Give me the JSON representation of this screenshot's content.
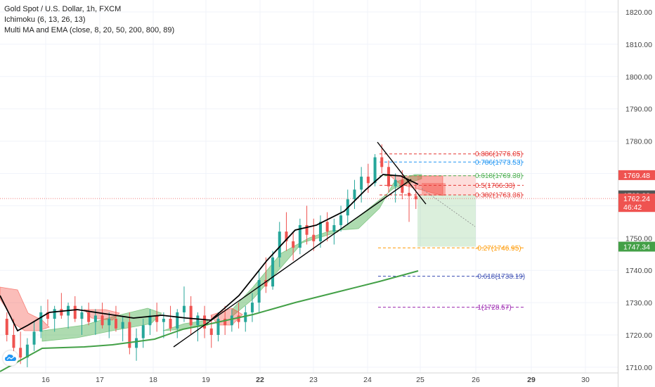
{
  "legend": {
    "symbol_line": "Gold Spot / U.S. Dollar, 1h, FXCM",
    "ichimoku_line": "Ichimoku (6, 13, 26, 13)",
    "ma_line": "Multi MA and EMA (close, 8, 20, 50, 200, 800, 89)"
  },
  "colors": {
    "bull": "#26a69a",
    "bear": "#ef5350",
    "cloud_bull": "#4caf50",
    "cloud_bear": "#f44336",
    "ma_black": "#000000",
    "ma_green": "#43a047",
    "fib_red": "#e53935",
    "fib_blue": "#2196f3",
    "fib_green": "#4caf50",
    "fib_orange": "#ff9800",
    "fib_purple": "#3f51b5",
    "fib_violet": "#9c27b0"
  },
  "chart_data": {
    "type": "candlestick",
    "title": "Gold Spot / U.S. Dollar, 1h, FXCM",
    "yaxis": {
      "ticks": [
        "1820.00",
        "1810.00",
        "1800.00",
        "1790.00",
        "1780.00",
        "1770.00",
        "1760.00",
        "1750.00",
        "1740.00",
        "1730.00",
        "1720.00",
        "1710.00"
      ],
      "ylim": [
        1709.5,
        1823.5
      ]
    },
    "xaxis": {
      "tick_labels": [
        "16",
        "17",
        "18",
        "19",
        "22",
        "23",
        "24",
        "25",
        "26",
        "29",
        "30"
      ]
    },
    "price_labels": [
      {
        "text": "1769.48",
        "value": 1769.48,
        "color": "#ef5350"
      },
      {
        "text": "1763.22",
        "value": 1763.22,
        "color": "#555555"
      },
      {
        "text": "1762.24",
        "value": 1762.24,
        "color": "#ef5350"
      },
      {
        "text": "46:42",
        "value": 1759.6,
        "color": "#ef5350"
      },
      {
        "text": "1747.34",
        "value": 1747.34,
        "color": "#43a047"
      }
    ],
    "current_price": 1762.24,
    "fib_levels": [
      {
        "label": "0.886(1776.05)",
        "value": 1776.05,
        "color": "#e53935"
      },
      {
        "label": "0.786(1773.53)",
        "value": 1773.53,
        "color": "#2196f3"
      },
      {
        "label": "0.618(1769.30)",
        "value": 1769.3,
        "color": "#4caf50"
      },
      {
        "label": "0.5(1766.33)",
        "value": 1766.33,
        "color": "#e53935"
      },
      {
        "label": "0.382(1763.36)",
        "value": 1763.36,
        "color": "#e53935"
      },
      {
        "label": "-0.27(1746.95)",
        "value": 1746.95,
        "color": "#ff9800"
      },
      {
        "label": "-0.618(1738.19)",
        "value": 1738.19,
        "color": "#3f51b5"
      },
      {
        "label": "-1(1728.57)",
        "value": 1728.57,
        "color": "#9c27b0"
      }
    ],
    "position": {
      "entry": 1763.36,
      "stop": 1769.48,
      "target": 1747.34
    },
    "candles": [
      [
        1725,
        1727,
        1718,
        1720
      ],
      [
        1720,
        1725,
        1714,
        1716
      ],
      [
        1716,
        1721,
        1711,
        1713
      ],
      [
        1713,
        1719,
        1710,
        1717
      ],
      [
        1717,
        1724,
        1715,
        1721
      ],
      [
        1721,
        1729,
        1719,
        1727
      ],
      [
        1727,
        1731,
        1723,
        1725
      ],
      [
        1725,
        1729,
        1721,
        1728
      ],
      [
        1728,
        1733,
        1725,
        1726
      ],
      [
        1726,
        1730,
        1722,
        1729
      ],
      [
        1729,
        1732,
        1724,
        1725
      ],
      [
        1725,
        1729,
        1720,
        1727
      ],
      [
        1727,
        1730,
        1723,
        1724
      ],
      [
        1724,
        1728,
        1720,
        1726
      ],
      [
        1726,
        1730,
        1722,
        1723
      ],
      [
        1723,
        1727,
        1719,
        1725
      ],
      [
        1725,
        1729,
        1721,
        1722
      ],
      [
        1722,
        1726,
        1718,
        1724
      ],
      [
        1724,
        1727,
        1714,
        1716
      ],
      [
        1716,
        1722,
        1712,
        1719
      ],
      [
        1719,
        1725,
        1716,
        1723
      ],
      [
        1723,
        1728,
        1720,
        1726
      ],
      [
        1726,
        1730,
        1721,
        1724
      ],
      [
        1724,
        1727,
        1719,
        1725
      ],
      [
        1725,
        1729,
        1721,
        1722
      ],
      [
        1722,
        1728,
        1719,
        1727
      ],
      [
        1727,
        1735,
        1724,
        1729
      ],
      [
        1729,
        1732,
        1720,
        1723
      ],
      [
        1723,
        1727,
        1718,
        1726
      ],
      [
        1726,
        1729,
        1719,
        1722
      ],
      [
        1722,
        1726,
        1716,
        1720
      ],
      [
        1720,
        1727,
        1718,
        1725
      ],
      [
        1725,
        1729,
        1720,
        1723
      ],
      [
        1723,
        1728,
        1721,
        1726
      ],
      [
        1726,
        1730,
        1722,
        1724
      ],
      [
        1724,
        1729,
        1721,
        1727
      ],
      [
        1727,
        1733,
        1724,
        1730
      ],
      [
        1730,
        1740,
        1727,
        1737
      ],
      [
        1737,
        1744,
        1733,
        1735
      ],
      [
        1735,
        1746,
        1734,
        1744
      ],
      [
        1744,
        1755,
        1741,
        1752
      ],
      [
        1752,
        1758,
        1746,
        1749
      ],
      [
        1749,
        1752,
        1743,
        1747
      ],
      [
        1747,
        1756,
        1745,
        1754
      ],
      [
        1754,
        1760,
        1748,
        1751
      ],
      [
        1751,
        1756,
        1746,
        1749
      ],
      [
        1749,
        1757,
        1747,
        1755
      ],
      [
        1755,
        1758,
        1749,
        1752
      ],
      [
        1752,
        1756,
        1748,
        1754
      ],
      [
        1754,
        1760,
        1752,
        1757
      ],
      [
        1757,
        1765,
        1754,
        1762
      ],
      [
        1762,
        1768,
        1759,
        1765
      ],
      [
        1765,
        1772,
        1761,
        1769
      ],
      [
        1769,
        1773,
        1764,
        1767
      ],
      [
        1767,
        1776,
        1766,
        1775
      ],
      [
        1775,
        1779,
        1770,
        1772
      ],
      [
        1772,
        1774,
        1764,
        1766
      ],
      [
        1766,
        1770,
        1761,
        1768
      ],
      [
        1768,
        1771,
        1762,
        1764
      ],
      [
        1764,
        1768,
        1755,
        1763
      ],
      [
        1763,
        1767,
        1759,
        1762
      ]
    ],
    "candle_slots": [
      4,
      9,
      14,
      19,
      24,
      29,
      34,
      39,
      44,
      49,
      54,
      59,
      64,
      69,
      74,
      79,
      84,
      89,
      94,
      99,
      104,
      109,
      114,
      119,
      124,
      129,
      134,
      139,
      144,
      149,
      154,
      159,
      164,
      169,
      174,
      179,
      184,
      189,
      194,
      199,
      204,
      209,
      214,
      219,
      224,
      229,
      234,
      239,
      244,
      249,
      254,
      259,
      264,
      269,
      274,
      279,
      284,
      289,
      294,
      299,
      304
    ]
  }
}
